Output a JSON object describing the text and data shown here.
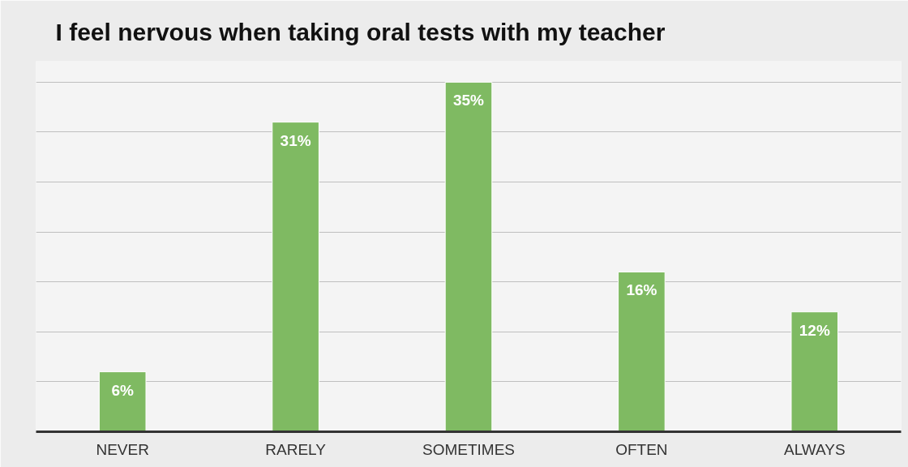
{
  "chart_data": {
    "type": "bar",
    "title": "I feel nervous when taking oral tests with my teacher",
    "categories": [
      "NEVER",
      "RARELY",
      "SOMETIMES",
      "OFTEN",
      "ALWAYS"
    ],
    "values": [
      6,
      31,
      35,
      16,
      12
    ],
    "value_labels": [
      "6%",
      "31%",
      "35%",
      "16%",
      "12%"
    ],
    "color": "#7fba62",
    "tick_labels": "x",
    "grid": "y"
  }
}
